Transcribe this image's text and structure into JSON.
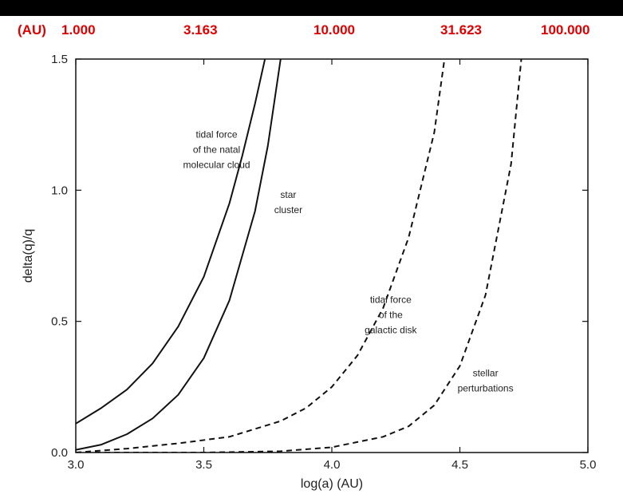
{
  "top_axis": {
    "unit": "(AU)",
    "ticks": [
      "1.000",
      "3.163",
      "10.000",
      "31.623",
      "100.000"
    ],
    "color": "#e00000"
  },
  "chart_data": {
    "type": "line",
    "title": "",
    "xlabel": "log(a) (AU)",
    "ylabel": "delta(q)/q",
    "xlim": [
      3.0,
      5.0
    ],
    "ylim": [
      0.0,
      1.5
    ],
    "x_ticks": [
      "3.0",
      "3.5",
      "4.0",
      "4.5",
      "5.0"
    ],
    "y_ticks": [
      "0.0",
      "0.5",
      "1.0",
      "1.5"
    ],
    "grid": false,
    "series": [
      {
        "style": "solid",
        "x": [
          3.0,
          3.1,
          3.2,
          3.3,
          3.4,
          3.5,
          3.6,
          3.65,
          3.7,
          3.75
        ],
        "y": [
          0.11,
          0.17,
          0.24,
          0.34,
          0.48,
          0.67,
          0.95,
          1.13,
          1.33,
          1.55
        ]
      },
      {
        "style": "solid",
        "x": [
          3.0,
          3.1,
          3.2,
          3.3,
          3.4,
          3.5,
          3.6,
          3.7,
          3.75,
          3.8
        ],
        "y": [
          0.01,
          0.03,
          0.07,
          0.13,
          0.22,
          0.36,
          0.58,
          0.92,
          1.17,
          1.5
        ]
      },
      {
        "style": "dashed",
        "x": [
          3.0,
          3.2,
          3.4,
          3.6,
          3.8,
          3.9,
          4.0,
          4.1,
          4.2,
          4.3,
          4.4,
          4.44
        ],
        "y": [
          0.0,
          0.015,
          0.035,
          0.06,
          0.12,
          0.17,
          0.25,
          0.37,
          0.55,
          0.82,
          1.22,
          1.5
        ]
      },
      {
        "style": "dashed",
        "x": [
          3.0,
          3.5,
          3.8,
          4.0,
          4.2,
          4.3,
          4.4,
          4.5,
          4.6,
          4.7,
          4.74
        ],
        "y": [
          0.0,
          0.0,
          0.005,
          0.02,
          0.06,
          0.1,
          0.18,
          0.33,
          0.6,
          1.1,
          1.5
        ]
      }
    ],
    "annotations": [
      {
        "lines": [
          "tidal force",
          "of the natal",
          "molecular cloud"
        ],
        "x": 3.55,
        "y": 1.2
      },
      {
        "lines": [
          "star",
          "cluster"
        ],
        "x": 3.83,
        "y": 0.97
      },
      {
        "lines": [
          "tidal force",
          "of the",
          "galactic disk"
        ],
        "x": 4.23,
        "y": 0.57
      },
      {
        "lines": [
          "stellar",
          "perturbations"
        ],
        "x": 4.6,
        "y": 0.29
      }
    ]
  }
}
